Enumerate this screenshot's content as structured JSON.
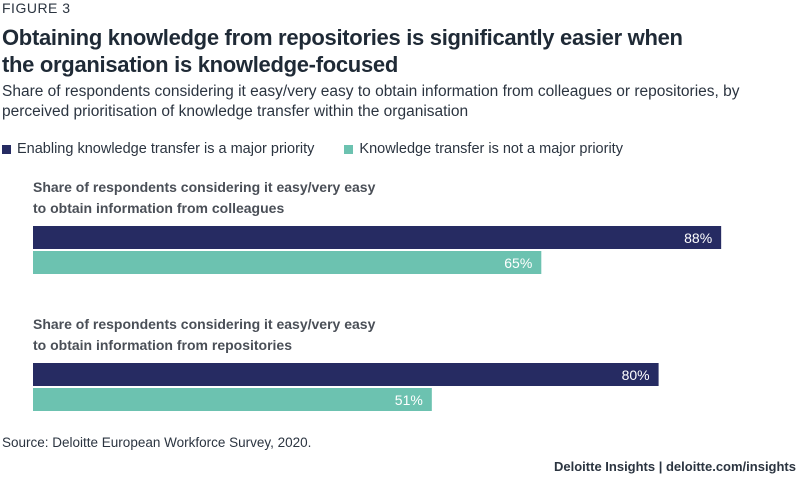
{
  "figure_label": "FIGURE 3",
  "title": "Obtaining knowledge from repositories is significantly easier when the organisation is knowledge-focused",
  "subtitle": "Share of respondents considering it easy/very easy to obtain information from colleagues or repositories, by perceived prioritisation of knowledge transfer within the organisation",
  "source": "Source: Deloitte European Workforce Survey, 2020.",
  "footer": "Deloitte Insights | deloitte.com/insights",
  "colors": {
    "major_priority": "#262b62",
    "not_major_priority": "#6cc2b0"
  },
  "chart_data": {
    "type": "bar",
    "orientation": "horizontal",
    "xlim": [
      0,
      100
    ],
    "legend_position": "top-left",
    "grid": false,
    "categories": [
      "Share of respondents considering it easy/very easy to obtain information from colleagues",
      "Share of respondents considering it easy/very easy to obtain information from repositories"
    ],
    "category_lines": [
      [
        "Share of respondents considering it easy/very easy",
        "to obtain information from colleagues"
      ],
      [
        "Share of respondents considering it easy/very easy",
        "to obtain information from repositories"
      ]
    ],
    "series": [
      {
        "name": "Enabling knowledge transfer is a major priority",
        "values": [
          88,
          80
        ],
        "labels": [
          "88%",
          "80%"
        ]
      },
      {
        "name": "Knowledge transfer is not a major priority",
        "values": [
          65,
          51
        ],
        "labels": [
          "65%",
          "51%"
        ]
      }
    ]
  }
}
